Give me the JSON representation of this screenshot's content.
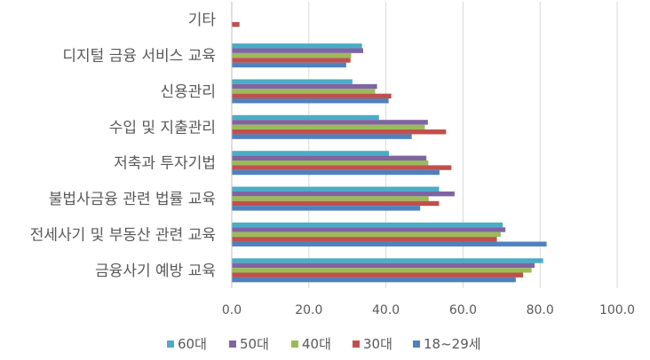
{
  "chart_data": {
    "type": "bar",
    "orientation": "horizontal",
    "categories": [
      "기타",
      "디지털 금융 서비스 교육",
      "신용관리",
      "수입 및 지출관리",
      "저축과 투자기법",
      "불법사금융 관련 법률 교육",
      "전세사기 및 부동산 관련 교육",
      "금융사기 예방 교육"
    ],
    "series": [
      {
        "name": "60대",
        "color": "#4BACC6",
        "values": [
          0,
          33.8,
          31.3,
          38.2,
          40.8,
          53.8,
          70.3,
          80.8
        ]
      },
      {
        "name": "50대",
        "color": "#8064A2",
        "values": [
          0,
          34.1,
          37.7,
          50.9,
          50.5,
          57.8,
          71.0,
          78.6
        ]
      },
      {
        "name": "40대",
        "color": "#9BBB59",
        "values": [
          0,
          31.0,
          37.2,
          50.1,
          51.0,
          51.1,
          69.8,
          77.8
        ]
      },
      {
        "name": "30대",
        "color": "#C0504D",
        "values": [
          2.0,
          30.8,
          41.4,
          55.6,
          57.0,
          53.8,
          68.8,
          75.6
        ]
      },
      {
        "name": "18~29세",
        "color": "#4F81BD",
        "values": [
          0,
          29.7,
          40.7,
          46.7,
          53.9,
          48.9,
          81.7,
          73.7
        ]
      }
    ],
    "xlim": [
      0,
      100
    ],
    "x_ticks": [
      "0.0",
      "20.0",
      "40.0",
      "60.0",
      "80.0",
      "100.0"
    ],
    "grid": true,
    "legend_position": "bottom"
  }
}
